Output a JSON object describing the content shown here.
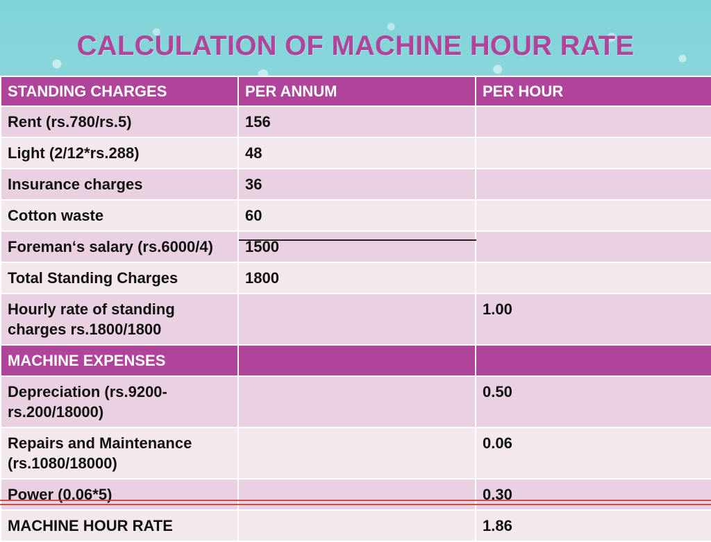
{
  "title": "CALCULATION OF MACHINE HOUR RATE",
  "headers": [
    "STANDING CHARGES",
    "PER ANNUM",
    "PER HOUR"
  ],
  "rows": [
    {
      "label": "Rent  (rs.780/rs.5)",
      "annum": "156",
      "hour": ""
    },
    {
      "label": "Light  (2/12*rs.288)",
      "annum": "48",
      "hour": ""
    },
    {
      "label": "Insurance charges",
      "annum": "36",
      "hour": ""
    },
    {
      "label": "Cotton waste",
      "annum": "60",
      "hour": ""
    },
    {
      "label": "Foreman‘s salary (rs.6000/4)",
      "annum": "1500",
      "hour": ""
    },
    {
      "label": "Total Standing Charges",
      "annum": "1800",
      "hour": ""
    },
    {
      "label": "Hourly rate of standing charges  rs.1800/1800",
      "annum": "",
      "hour": "1.00"
    }
  ],
  "section": {
    "label": "MACHINE EXPENSES"
  },
  "expense_rows": [
    {
      "label": "Depreciation (rs.9200-rs.200/18000)",
      "annum": "",
      "hour": "0.50"
    },
    {
      "label": "Repairs and Maintenance (rs.1080/18000)",
      "annum": "",
      "hour": "0.06"
    },
    {
      "label": "Power (0.06*5)",
      "annum": "",
      "hour": "0.30"
    },
    {
      "label": "MACHINE HOUR RATE",
      "annum": "",
      "hour": "1.86"
    }
  ]
}
